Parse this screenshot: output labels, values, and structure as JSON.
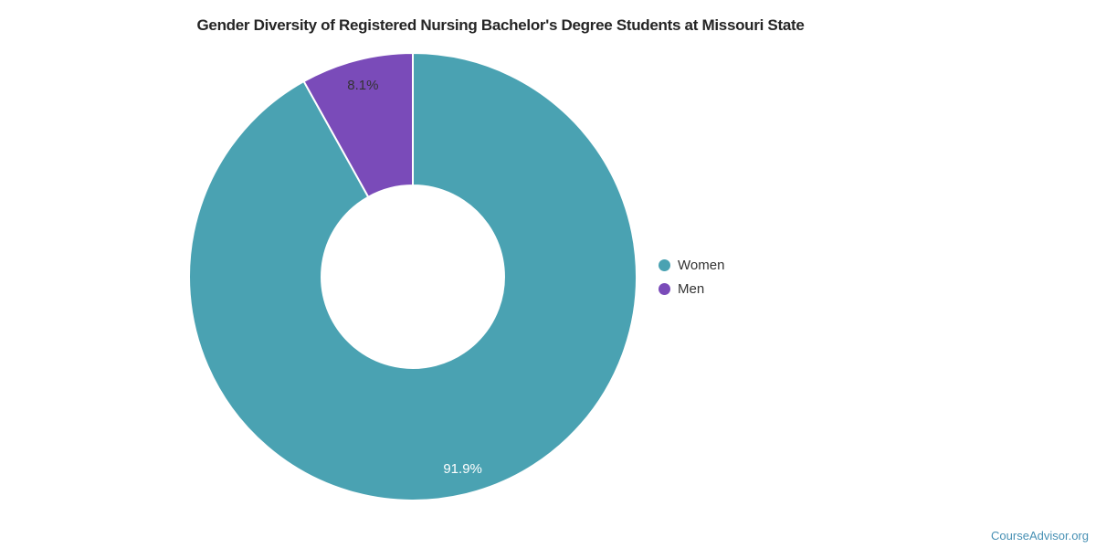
{
  "page": {
    "background": "#ffffff"
  },
  "chart_data": {
    "type": "pie",
    "subtype": "donut",
    "title": "Gender Diversity of Registered Nursing Bachelor's Degree Students at Missouri State",
    "categories": [
      "Women",
      "Men"
    ],
    "values": [
      91.9,
      8.1
    ],
    "unit": "%",
    "slices": [
      {
        "name": "Women",
        "value": 91.9,
        "label": "91.9%",
        "color": "#4AA2B2",
        "label_color": "#FFFFFF"
      },
      {
        "name": "Men",
        "value": 8.1,
        "label": "8.1%",
        "color": "#7A4BB9",
        "label_color": "#333333"
      }
    ],
    "start_angle_deg": 0,
    "direction": "clockwise",
    "outer_radius_px": 245,
    "inner_radius_ratio": 0.408,
    "slice_border_color": "#FFFFFF",
    "slice_border_width": 2,
    "legend_position": "right",
    "legend": [
      "Women",
      "Men"
    ]
  },
  "footer": {
    "link_label": "CourseAdvisor.org",
    "link_color": "#4790B4"
  }
}
